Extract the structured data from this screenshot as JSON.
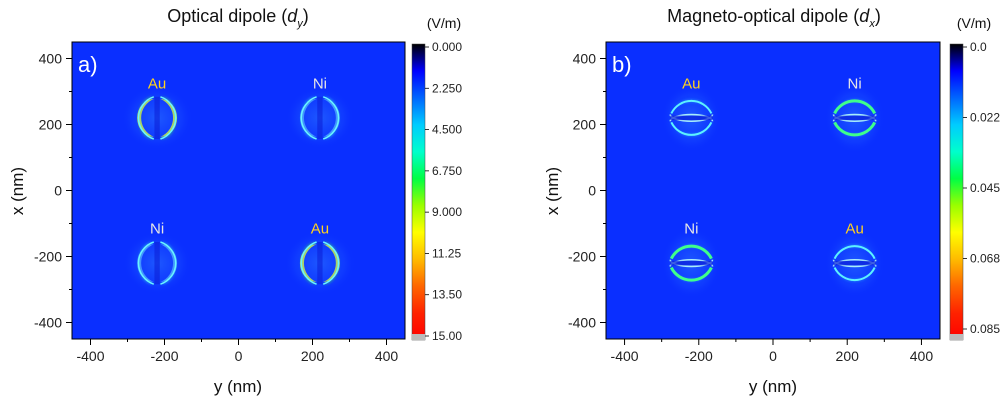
{
  "colors": {
    "background": "#0a2fff",
    "au_label": "#ffd21e",
    "ni_label": "#e6e6e6"
  },
  "colorbar_stops": [
    "#000000",
    "#0000ff",
    "#0066ff",
    "#00ccff",
    "#00ffcc",
    "#00ff44",
    "#99ff00",
    "#ffff00",
    "#ffbb00",
    "#ff6600",
    "#ff2200",
    "#ff0000"
  ],
  "chart_data": [
    {
      "type": "heatmap",
      "panel_label": "a)",
      "title_main": "Optical dipole (",
      "title_var": "d",
      "title_sub": "y",
      "title_end": ")",
      "xlabel": "y (nm)",
      "ylabel": "x (nm)",
      "xlim": [
        -450,
        450
      ],
      "ylim": [
        -450,
        450
      ],
      "xticks": [
        "-400",
        "-200",
        "0",
        "200",
        "400"
      ],
      "yticks": [
        "400",
        "200",
        "0",
        "-200",
        "-400"
      ],
      "colorbar": {
        "unit": "(V/m)",
        "range": [
          0,
          15
        ],
        "ticks": [
          "0.000",
          "2.250",
          "4.500",
          "6.750",
          "9.000",
          "11.25",
          "13.50",
          "15.00"
        ]
      },
      "particles": [
        {
          "label": "Au",
          "x": -220,
          "y": 220,
          "orientation": "vertical",
          "strength": 1.0
        },
        {
          "label": "Ni",
          "x": 220,
          "y": 220,
          "orientation": "vertical",
          "strength": 0.55
        },
        {
          "label": "Ni",
          "x": -220,
          "y": -220,
          "orientation": "vertical",
          "strength": 0.55
        },
        {
          "label": "Au",
          "x": 220,
          "y": -220,
          "orientation": "vertical",
          "strength": 1.0
        }
      ]
    },
    {
      "type": "heatmap",
      "panel_label": "b)",
      "title_main": "Magneto-optical dipole (",
      "title_var": "d",
      "title_sub": "x",
      "title_end": ")",
      "xlabel": "y (nm)",
      "ylabel": "x (nm)",
      "xlim": [
        -450,
        450
      ],
      "ylim": [
        -450,
        450
      ],
      "xticks": [
        "-400",
        "-200",
        "0",
        "200",
        "400"
      ],
      "yticks": [
        "400",
        "200",
        "0",
        "-200",
        "-400"
      ],
      "colorbar": {
        "unit": "(V/m)",
        "range": [
          0,
          0.085
        ],
        "ticks": [
          "0.0",
          "0.022",
          "0.045",
          "0.068",
          "0.085"
        ]
      },
      "particles": [
        {
          "label": "Au",
          "x": -220,
          "y": 220,
          "orientation": "horizontal",
          "strength": 0.5
        },
        {
          "label": "Ni",
          "x": 220,
          "y": 220,
          "orientation": "horizontal",
          "strength": 0.9
        },
        {
          "label": "Ni",
          "x": -220,
          "y": -220,
          "orientation": "horizontal",
          "strength": 0.9
        },
        {
          "label": "Au",
          "x": 220,
          "y": -220,
          "orientation": "horizontal",
          "strength": 0.5
        }
      ]
    }
  ]
}
